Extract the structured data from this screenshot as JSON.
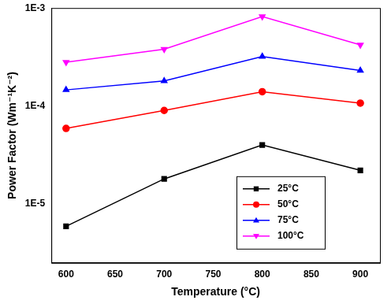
{
  "chart_data": {
    "type": "line",
    "x_label": "Temperature (°C)",
    "y_label": "Power Factor (Wm⁻¹K⁻²)",
    "x": [
      600,
      700,
      800,
      900
    ],
    "series": [
      {
        "name": "25°C",
        "color": "#000000",
        "marker": "square",
        "values": [
          5.9e-06,
          1.8e-05,
          4e-05,
          2.2e-05
        ]
      },
      {
        "name": "50°C",
        "color": "#ff0000",
        "marker": "circle",
        "values": [
          5.9e-05,
          9e-05,
          0.00014,
          0.000107
        ]
      },
      {
        "name": "75°C",
        "color": "#0000ff",
        "marker": "triangle-up",
        "values": [
          0.000146,
          0.00018,
          0.00032,
          0.00023
        ]
      },
      {
        "name": "100°C",
        "color": "#ff00ff",
        "marker": "triangle-down",
        "values": [
          0.00028,
          0.00038,
          0.00082,
          0.00042
        ]
      }
    ],
    "xlim": [
      585,
      920
    ],
    "xticks": [
      600,
      650,
      700,
      750,
      800,
      850,
      900
    ],
    "ylim": [
      2.5e-06,
      0.001
    ],
    "yticks": [
      {
        "value": 1e-05,
        "label": "1E-5"
      },
      {
        "value": 0.0001,
        "label": "1E-4"
      },
      {
        "value": 0.001,
        "label": "1E-3"
      }
    ],
    "log": "y",
    "grid": false,
    "legend": "lower right"
  }
}
